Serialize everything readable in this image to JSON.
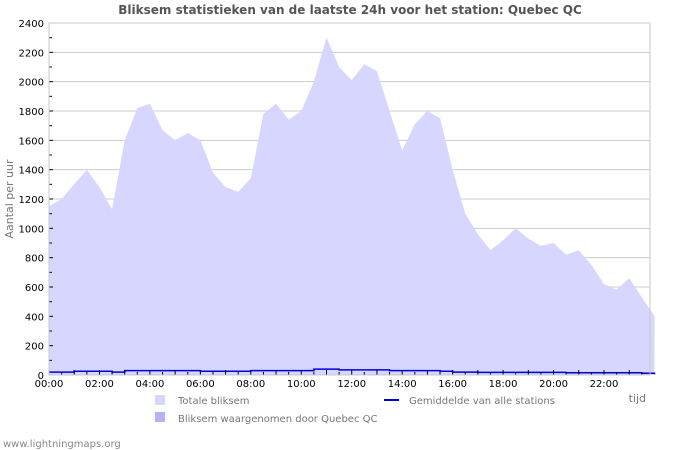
{
  "chart_data": {
    "type": "area",
    "title": "Bliksem statistieken van de laatste 24h voor het station: Quebec QC",
    "xlabel": "tijd",
    "ylabel": "Aantal per uur",
    "ylim": [
      0,
      2400
    ],
    "yticks": [
      0,
      200,
      400,
      600,
      800,
      1000,
      1200,
      1400,
      1600,
      1800,
      2000,
      2200,
      2400
    ],
    "xticks": [
      "00:00",
      "02:00",
      "04:00",
      "06:00",
      "08:00",
      "10:00",
      "12:00",
      "14:00",
      "16:00",
      "18:00",
      "20:00",
      "22:00"
    ],
    "grid": true,
    "legend_position": "bottom",
    "x_hours": [
      0,
      0.5,
      1,
      1.5,
      2,
      2.5,
      3,
      3.5,
      4,
      4.5,
      5,
      5.5,
      6,
      6.5,
      7,
      7.5,
      8,
      8.5,
      9,
      9.5,
      10,
      10.5,
      11,
      11.5,
      12,
      12.5,
      13,
      13.5,
      14,
      14.5,
      15,
      15.5,
      16,
      16.5,
      17,
      17.5,
      18,
      18.5,
      19,
      19.5,
      20,
      20.5,
      21,
      21.5,
      22,
      22.5,
      23,
      23.5,
      24
    ],
    "series": [
      {
        "name": "Totale bliksem",
        "kind": "area",
        "color": "#d6d6ff",
        "values": [
          1150,
          1200,
          1300,
          1400,
          1280,
          1130,
          1600,
          1820,
          1850,
          1670,
          1600,
          1650,
          1600,
          1380,
          1280,
          1250,
          1340,
          1780,
          1850,
          1740,
          1800,
          2000,
          2300,
          2100,
          2010,
          2120,
          2070,
          1800,
          1530,
          1710,
          1800,
          1750,
          1400,
          1100,
          960,
          850,
          920,
          1000,
          930,
          880,
          900,
          820,
          850,
          750,
          620,
          580,
          660,
          530,
          400
        ]
      },
      {
        "name": "Bliksem waargenomen door Quebec QC",
        "kind": "area",
        "color": "#b4b4f5",
        "values": [
          0,
          0,
          0,
          0,
          0,
          0,
          0,
          0,
          0,
          0,
          0,
          0,
          0,
          0,
          0,
          0,
          0,
          0,
          0,
          0,
          0,
          0,
          0,
          0,
          0,
          0,
          0,
          0,
          0,
          0,
          0,
          0,
          0,
          0,
          0,
          0,
          0,
          0,
          0,
          0,
          0,
          0,
          0,
          0,
          0,
          0,
          0,
          0,
          0
        ]
      },
      {
        "name": "Gemiddelde van alle stations",
        "kind": "line",
        "color": "#0000dd",
        "values": [
          20,
          20,
          25,
          25,
          25,
          20,
          30,
          30,
          30,
          30,
          30,
          30,
          25,
          25,
          25,
          25,
          30,
          30,
          30,
          30,
          30,
          40,
          40,
          35,
          35,
          35,
          35,
          30,
          30,
          30,
          30,
          25,
          20,
          20,
          18,
          18,
          18,
          18,
          18,
          18,
          18,
          15,
          15,
          15,
          15,
          15,
          15,
          12,
          5
        ]
      }
    ]
  },
  "legend": {
    "items": [
      {
        "label": "Totale bliksem",
        "swatch": "area",
        "color": "#d6d6ff"
      },
      {
        "label": "Gemiddelde van alle stations",
        "swatch": "line",
        "color": "#0000dd"
      },
      {
        "label": "Bliksem waargenomen door Quebec QC",
        "swatch": "area",
        "color": "#b4b4f5"
      }
    ]
  },
  "footer": {
    "source": "www.lightningmaps.org"
  }
}
